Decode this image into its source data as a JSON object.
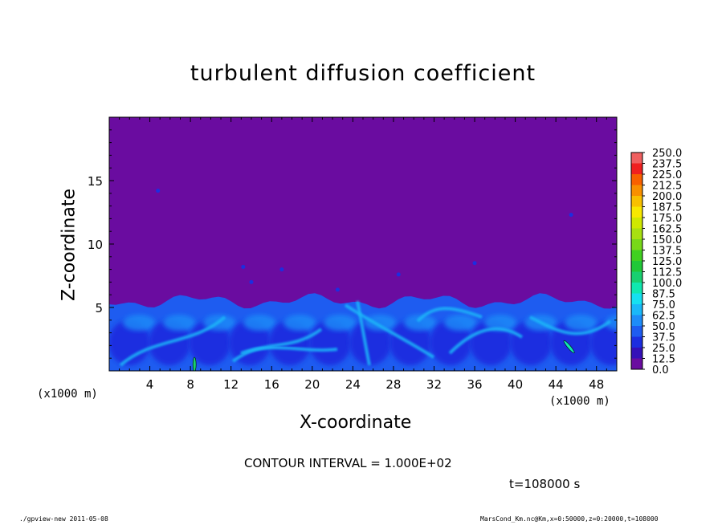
{
  "chart_data": {
    "type": "heatmap",
    "title": "turbulent diffusion coefficient",
    "xlabel": "X-coordinate",
    "ylabel": "Z-coordinate",
    "x_unit_left": "(x1000 m)",
    "x_unit_right": "(x1000 m)",
    "xlim": [
      0,
      50
    ],
    "ylim": [
      0,
      20
    ],
    "x_ticks": [
      "4",
      "8",
      "12",
      "16",
      "20",
      "24",
      "28",
      "32",
      "36",
      "40",
      "44",
      "48"
    ],
    "y_ticks": [
      "5",
      "10",
      "15"
    ],
    "colorbar_levels": [
      "0.0",
      "12.5",
      "25.0",
      "37.5",
      "50.0",
      "62.5",
      "75.0",
      "87.5",
      "100.0",
      "112.5",
      "125.0",
      "137.5",
      "150.0",
      "162.5",
      "175.0",
      "187.5",
      "200.0",
      "212.5",
      "225.0",
      "237.5",
      "250.0"
    ],
    "colorbar_colors": [
      "#6a0ca0",
      "#3410b8",
      "#1c2ee0",
      "#1e5cf0",
      "#1e8cf8",
      "#1ab8f8",
      "#16e0f0",
      "#10e8b0",
      "#18d070",
      "#20c838",
      "#40d020",
      "#78d818",
      "#a8e010",
      "#d0e800",
      "#f8e800",
      "#f8c000",
      "#f89000",
      "#f86000",
      "#f02020",
      "#f06060"
    ],
    "boundary_layer_top_km": 5.5,
    "background_value": 0.0,
    "contour_interval": "CONTOUR INTERVAL = 1.000E+02",
    "time": "t=108000 s",
    "grid": false
  },
  "footer": {
    "left": "./gpview-new   2011-05-08",
    "right": "MarsCond_Km.nc@Km,x=0:50000,z=0:20000,t=108000"
  }
}
